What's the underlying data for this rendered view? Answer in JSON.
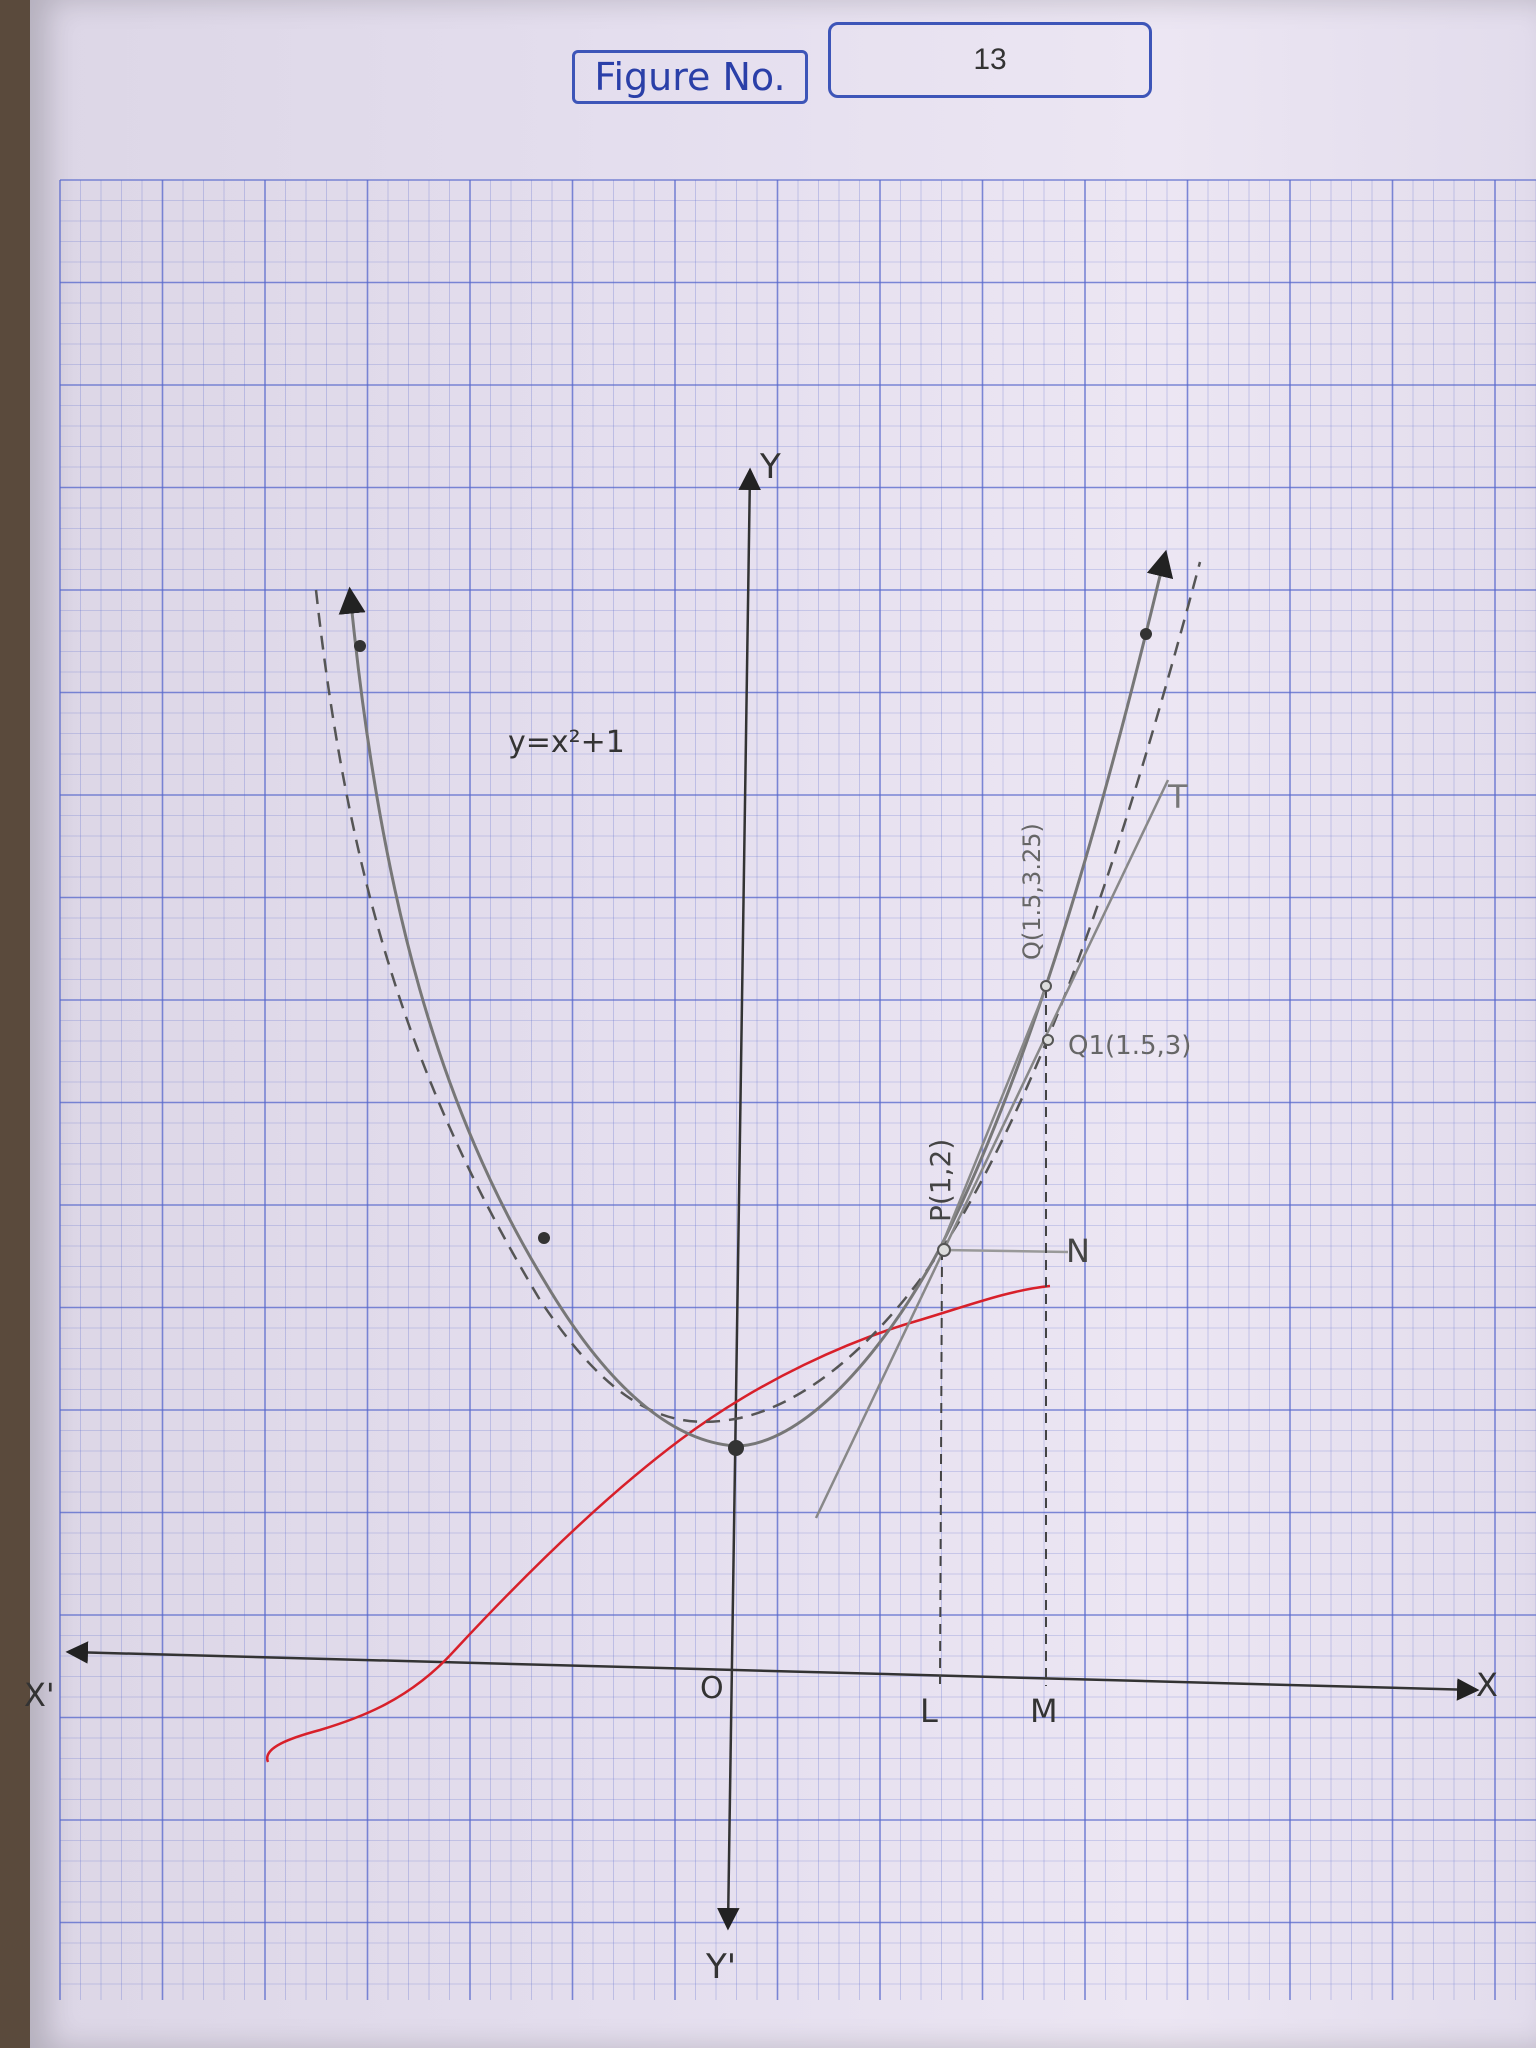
{
  "figure": {
    "label": "Figure No.",
    "number": "13"
  },
  "axes": {
    "x_pos_label": "X",
    "x_neg_label": "X'",
    "y_pos_label": "Y",
    "y_neg_label": "Y'",
    "origin_label": "O"
  },
  "equation_label": "y=x²+1",
  "points": {
    "P": "P(1,2)",
    "Q": "Q(1.5,3.25)",
    "Q1": "Q1(1.5,3)",
    "N": "N",
    "L": "L",
    "M": "M",
    "T": "T"
  },
  "colors": {
    "grid": "#5566cc",
    "curve": "#777777",
    "dashed_curve": "#555555",
    "red_curve": "#d8202a",
    "box_border": "#3d55b8"
  }
}
